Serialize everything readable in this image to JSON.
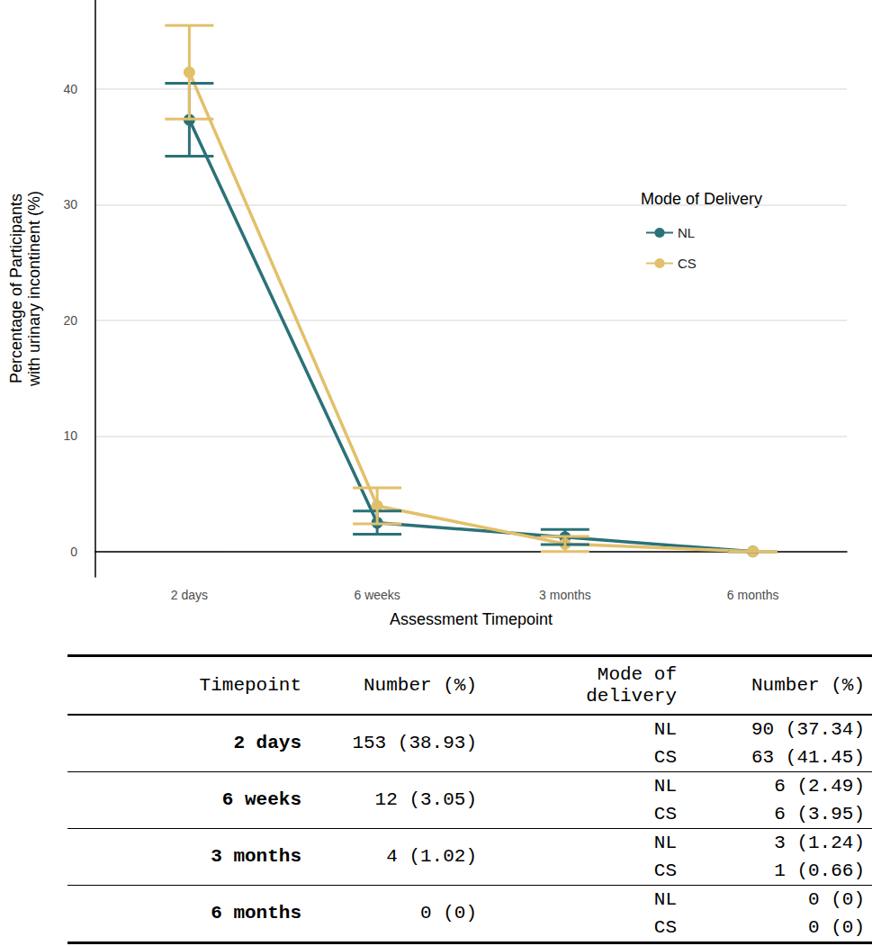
{
  "chart_data": {
    "type": "line",
    "x_label": "Assessment Timepoint",
    "y_label": "Percentage of Participants\nwith urinary incontinent (%)",
    "categories": [
      "2 days",
      "6 weeks",
      "3 months",
      "6 months"
    ],
    "series": [
      {
        "name": "NL",
        "color": "#2b7178",
        "values": [
          37.34,
          2.49,
          1.24,
          0
        ],
        "error_bars": [
          [
            34.2,
            40.5
          ],
          [
            1.5,
            3.5
          ],
          [
            0.6,
            1.9
          ],
          [
            0,
            0
          ]
        ]
      },
      {
        "name": "CS",
        "color": "#e2c06b",
        "values": [
          41.45,
          3.95,
          0.66,
          0
        ],
        "error_bars": [
          [
            37.4,
            45.5
          ],
          [
            2.4,
            5.5
          ],
          [
            0,
            1.3
          ],
          [
            0,
            0
          ]
        ]
      }
    ],
    "legend_title": "Mode of Delivery",
    "ylim": [
      -2.2,
      47.7
    ],
    "yticks": [
      0,
      10,
      20,
      30,
      40
    ],
    "grid": true,
    "legend": "right",
    "marker": "circle"
  },
  "table": {
    "header": [
      "Timepoint",
      "Number (%)",
      "Mode of\ndelivery",
      "Number (%)"
    ],
    "rows": [
      {
        "timepoint": "2 days",
        "total": "153 (38.93)",
        "groups": [
          [
            "NL",
            "90 (37.34)"
          ],
          [
            "CS",
            "63 (41.45)"
          ]
        ]
      },
      {
        "timepoint": "6 weeks",
        "total": "12 (3.05)",
        "groups": [
          [
            "NL",
            "6 (2.49)"
          ],
          [
            "CS",
            "6 (3.95)"
          ]
        ]
      },
      {
        "timepoint": "3 months",
        "total": "4 (1.02)",
        "groups": [
          [
            "NL",
            "3 (1.24)"
          ],
          [
            "CS",
            "1 (0.66)"
          ]
        ]
      },
      {
        "timepoint": "6 months",
        "total": "0 (0)",
        "groups": [
          [
            "NL",
            "0 (0)"
          ],
          [
            "CS",
            "0 (0)"
          ]
        ]
      }
    ]
  }
}
